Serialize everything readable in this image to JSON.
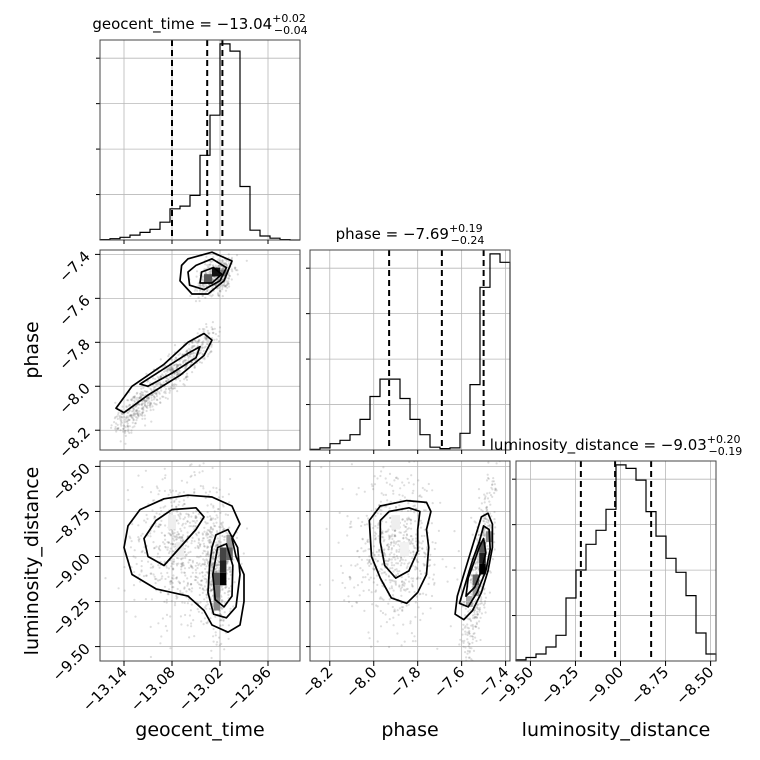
{
  "chart_data": {
    "type": "corner",
    "parameters": [
      "geocent_time",
      "phase",
      "luminosity_distance"
    ],
    "axis_labels": {
      "x": [
        "geocent_time",
        "phase",
        "luminosity_distance"
      ],
      "y": [
        "phase",
        "luminosity_distance"
      ]
    },
    "titles": [
      {
        "param": "geocent_time",
        "prefix": "geocent_time = ",
        "median": "−13.04",
        "plus": "+0.02",
        "minus": "−0.04"
      },
      {
        "param": "phase",
        "prefix": "phase = ",
        "median": "−7.69",
        "plus": "+0.19",
        "minus": "−0.24"
      },
      {
        "param": "luminosity_distance",
        "prefix": "luminosity_distance = ",
        "median": "−9.03",
        "plus": "+0.20",
        "minus": "−0.19"
      }
    ],
    "ranges": {
      "geocent_time": [
        -13.17,
        -12.92
      ],
      "phase": [
        -8.29,
        -7.38
      ],
      "luminosity_distance": [
        -9.58,
        -8.47
      ]
    },
    "ticks": {
      "geocent_time": {
        "values": [
          -13.14,
          -13.08,
          -13.02,
          -12.96
        ],
        "labels": [
          "−13.14",
          "−13.08",
          "−13.02",
          "−12.96"
        ]
      },
      "phase": {
        "values": [
          -8.2,
          -8.0,
          -7.8,
          -7.6,
          -7.4
        ],
        "labels": [
          "−8.2",
          "−8.0",
          "−7.8",
          "−7.6",
          "−7.4"
        ]
      },
      "luminosity_distance": {
        "values": [
          -9.5,
          -9.25,
          -9.0,
          -8.75,
          -8.5
        ],
        "labels": [
          "−9.50",
          "−9.25",
          "−9.00",
          "−8.75",
          "−8.50"
        ]
      }
    },
    "quantiles": {
      "geocent_time": [
        -13.08,
        -13.036,
        -13.017
      ],
      "phase": [
        -7.93,
        -7.69,
        -7.5
      ],
      "luminosity_distance": [
        -9.22,
        -9.03,
        -8.83
      ]
    },
    "histograms": {
      "geocent_time": [
        1,
        3,
        6,
        11,
        17,
        24,
        40,
        70,
        76,
        100,
        190,
        280,
        440,
        424,
        120,
        22,
        9,
        4,
        1,
        0
      ],
      "phase": [
        1,
        3,
        9,
        14,
        22,
        44,
        77,
        102,
        102,
        74,
        44,
        22,
        4,
        2,
        3,
        24,
        94,
        234,
        282,
        270
      ],
      "luminosity_distance": [
        1,
        3,
        6,
        12,
        22,
        54,
        78,
        100,
        112,
        130,
        168,
        165,
        155,
        128,
        107,
        88,
        76,
        56,
        24,
        6
      ]
    },
    "grid": true,
    "histogram_color": "#000000",
    "contour_color": "#000000"
  }
}
